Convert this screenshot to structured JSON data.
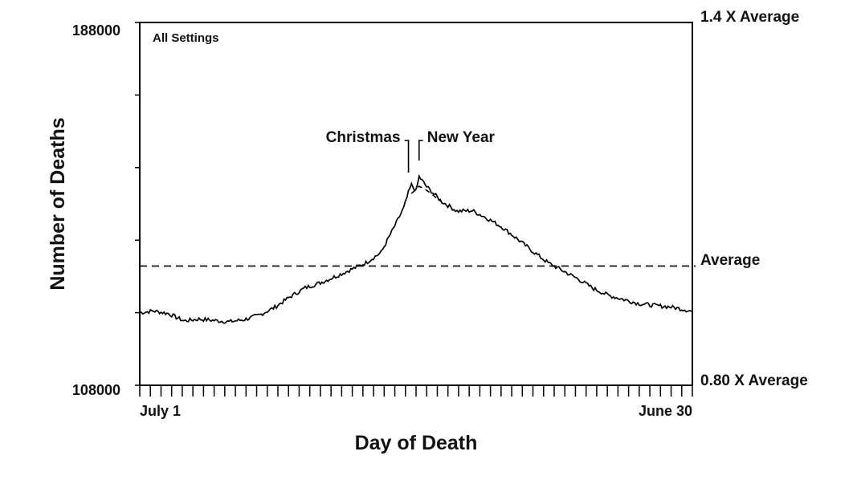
{
  "chart_data": {
    "type": "line",
    "title": "",
    "panel_label": "All Settings",
    "xlabel": "Day of Death",
    "ylabel": "Number of Deaths",
    "x_tick_labels": [
      "July 1",
      "June 30"
    ],
    "x_tick_label_days": [
      1,
      365
    ],
    "xlim": [
      1,
      365
    ],
    "ylim": [
      108000,
      188000
    ],
    "y_tick_labels": [
      "188000",
      "108000"
    ],
    "secondary_y_labels": [
      {
        "label": "1.4 X Average",
        "value": 188000
      },
      {
        "label": "Average",
        "value": 134300
      },
      {
        "label": "0.80 X Average",
        "value": 108000
      }
    ],
    "reference_line": {
      "label": "Average",
      "value": 134300,
      "style": "dashed"
    },
    "annotations": [
      {
        "label": "Christmas",
        "day": 178
      },
      {
        "label": "New Year",
        "day": 185
      }
    ],
    "grid": false,
    "legend": "none",
    "series": [
      {
        "style": "solid",
        "x": [
          1,
          10,
          20,
          30,
          40,
          50,
          60,
          70,
          80,
          90,
          100,
          110,
          120,
          130,
          140,
          150,
          160,
          165,
          170,
          175,
          178,
          180,
          183,
          185,
          190,
          200,
          210,
          220,
          230,
          240,
          250,
          260,
          270,
          280,
          290,
          300,
          310,
          320,
          330,
          340,
          350,
          360,
          365
        ],
        "y": [
          124000,
          124400,
          123800,
          122200,
          122600,
          122300,
          122000,
          122500,
          123500,
          125200,
          127500,
          129500,
          130600,
          132000,
          133500,
          135000,
          137300,
          140600,
          143800,
          147200,
          150500,
          152200,
          150800,
          154000,
          151800,
          148500,
          146400,
          146500,
          144800,
          142800,
          140200,
          137500,
          135000,
          133200,
          131400,
          129300,
          127800,
          126900,
          126000,
          125600,
          125300,
          124700,
          124300
        ]
      },
      {
        "style": "dashed",
        "x": [
          180,
          183,
          185,
          190,
          200
        ],
        "y": [
          150300,
          151200,
          151900,
          151000,
          148400
        ]
      }
    ]
  }
}
